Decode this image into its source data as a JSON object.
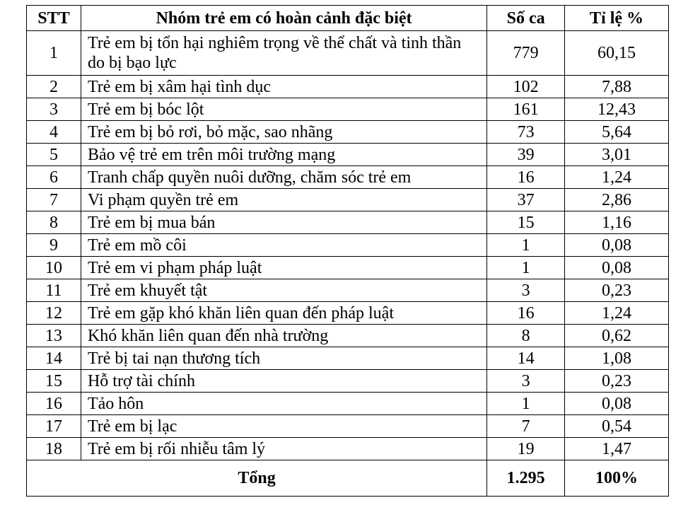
{
  "table": {
    "headers": [
      "STT",
      "Nhóm trẻ em có hoàn cảnh đặc biệt",
      "Số ca",
      "Tỉ lệ %"
    ],
    "rows": [
      [
        "1",
        "Trẻ em bị tổn hại nghiêm trọng về thể chất và tinh thần do bị bạo lực",
        "779",
        "60,15"
      ],
      [
        "2",
        "Trẻ em bị xâm hại tình dục",
        "102",
        "7,88"
      ],
      [
        "3",
        "Trẻ em bị bóc lột",
        "161",
        "12,43"
      ],
      [
        "4",
        "Trẻ em bị bỏ rơi, bỏ mặc, sao nhãng",
        "73",
        "5,64"
      ],
      [
        "5",
        "Bảo vệ trẻ em trên môi trường mạng",
        "39",
        "3,01"
      ],
      [
        "6",
        "Tranh chấp quyền nuôi dưỡng, chăm sóc trẻ em",
        "16",
        "1,24"
      ],
      [
        "7",
        "Vi phạm quyền trẻ em",
        "37",
        "2,86"
      ],
      [
        "8",
        "Trẻ em bị mua bán",
        "15",
        "1,16"
      ],
      [
        "9",
        "Trẻ em mồ côi",
        "1",
        "0,08"
      ],
      [
        "10",
        "Trẻ em vi phạm pháp luật",
        "1",
        "0,08"
      ],
      [
        "11",
        "Trẻ em khuyết tật",
        "3",
        "0,23"
      ],
      [
        "12",
        "Trẻ em gặp khó khăn liên quan đến pháp luật",
        "16",
        "1,24"
      ],
      [
        "13",
        "Khó khăn liên quan đến nhà trường",
        "8",
        "0,62"
      ],
      [
        "14",
        "Trẻ bị tai nạn thương tích",
        "14",
        "1,08"
      ],
      [
        "15",
        "Hỗ trợ tài chính",
        "3",
        "0,23"
      ],
      [
        "16",
        "Tảo hôn",
        "1",
        "0,08"
      ],
      [
        "17",
        "Trẻ em bị lạc",
        "7",
        "0,54"
      ],
      [
        "18",
        "Trẻ em bị rối nhiễu tâm lý",
        "19",
        "1,47"
      ]
    ],
    "total": {
      "label": "Tổng",
      "count": "1.295",
      "percent": "100%"
    }
  }
}
